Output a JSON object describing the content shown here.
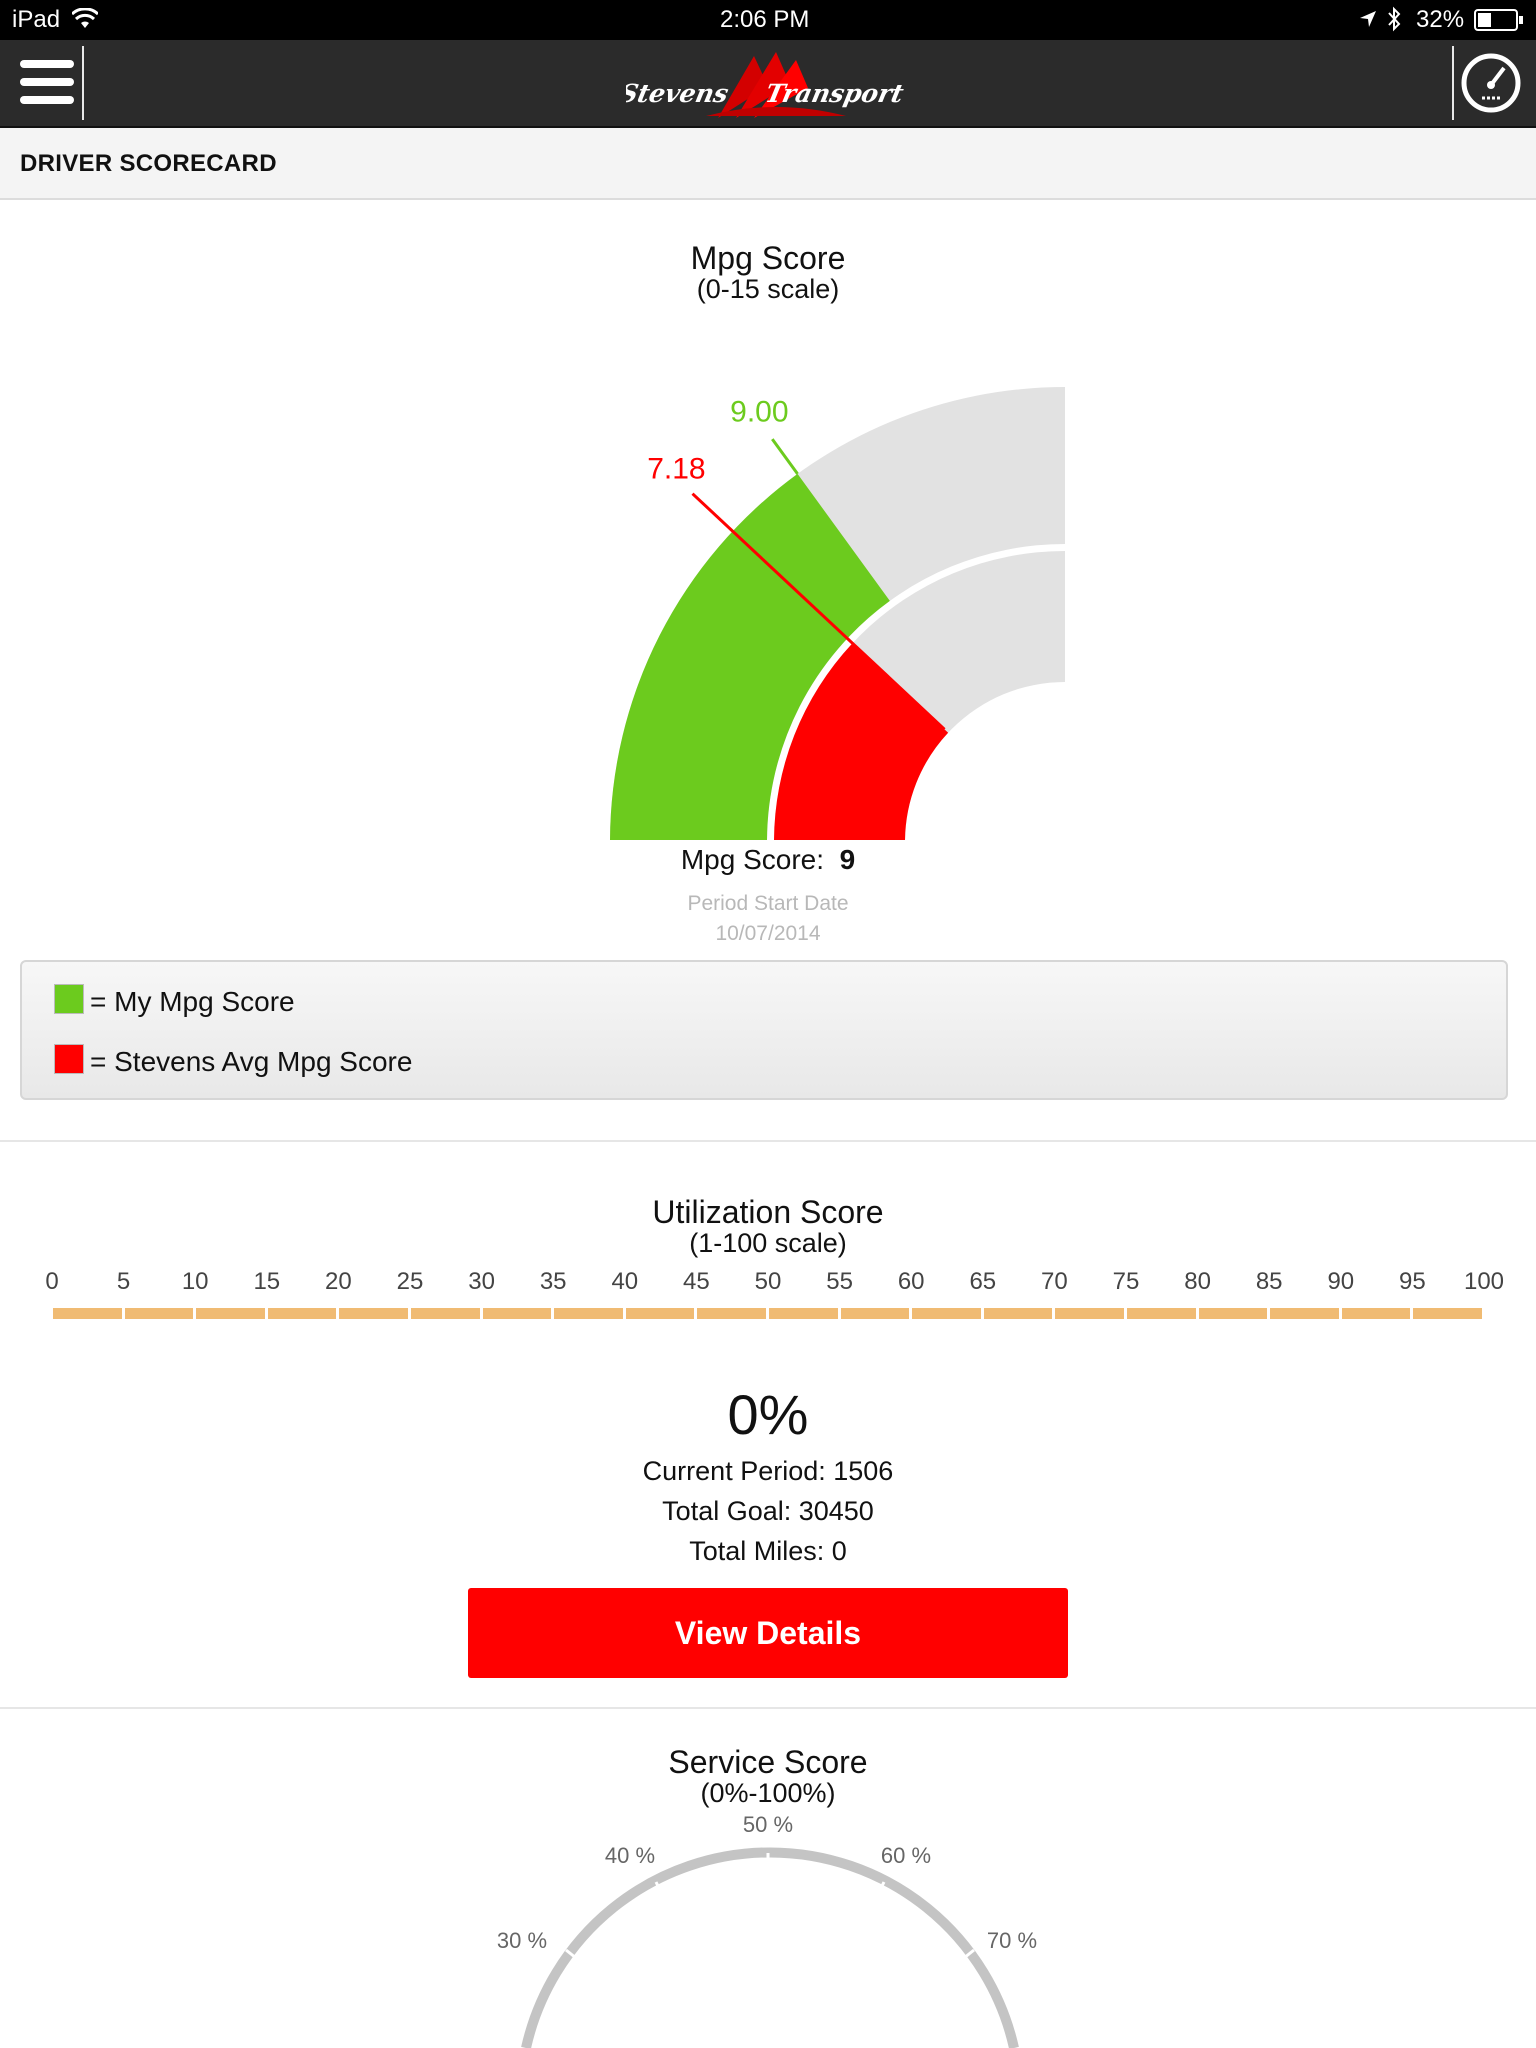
{
  "status_bar": {
    "device": "iPad",
    "time": "2:06 PM",
    "battery": "32%"
  },
  "nav": {
    "brand": "Stevens Transport",
    "menu_icon": "hamburger-menu-icon",
    "dashboard_icon": "speedometer-icon"
  },
  "section": {
    "title": "DRIVER SCORECARD"
  },
  "mpg": {
    "title": "Mpg Score",
    "subtitle": "(0-15 scale)",
    "my_value_label": "9.00",
    "avg_value_label": "7.18",
    "score_label": "Mpg Score:",
    "score_value": "9",
    "period_label": "Period Start Date",
    "period_date": "10/07/2014",
    "legend": [
      {
        "text": "= My Mpg Score",
        "color": "#6ccb1e"
      },
      {
        "text": "= Stevens Avg Mpg Score",
        "color": "#ff0000"
      }
    ]
  },
  "chart_data": [
    {
      "type": "gauge",
      "title": "Mpg Score",
      "subtitle": "(0-15 scale)",
      "range": [
        0,
        15
      ],
      "series": [
        {
          "name": "My Mpg Score",
          "value": 9.0,
          "color": "#6ccb1e"
        },
        {
          "name": "Stevens Avg Mpg Score",
          "value": 7.18,
          "color": "#ff0000"
        }
      ]
    },
    {
      "type": "bar",
      "title": "Utilization Score",
      "subtitle": "(1-100 scale)",
      "xlim": [
        0,
        100
      ],
      "tick_labels": [
        "0",
        "5",
        "10",
        "15",
        "20",
        "25",
        "30",
        "35",
        "40",
        "45",
        "50",
        "55",
        "60",
        "65",
        "70",
        "75",
        "80",
        "85",
        "90",
        "95",
        "100"
      ],
      "value_percent": 0
    },
    {
      "type": "gauge",
      "title": "Service Score",
      "subtitle": "(0%-100%)",
      "range": [
        0,
        100
      ],
      "tick_labels": [
        "30 %",
        "40 %",
        "50 %",
        "60 %",
        "70 %"
      ]
    }
  ],
  "utilization": {
    "title": "Utilization Score",
    "subtitle": "(1-100 scale)",
    "percent": "0%",
    "current_period": "Current Period: 1506",
    "total_goal": "Total Goal: 30450",
    "total_miles": "Total Miles: 0",
    "button": "View Details"
  },
  "service": {
    "title": "Service Score",
    "subtitle": "(0%-100%)",
    "ticks": [
      "30 %",
      "40 %",
      "50 %",
      "60 %",
      "70 %"
    ]
  },
  "colors": {
    "green": "#6ccb1e",
    "red": "#ff0000",
    "bar": "#f0bb73",
    "gray": "#e2e2e2"
  }
}
